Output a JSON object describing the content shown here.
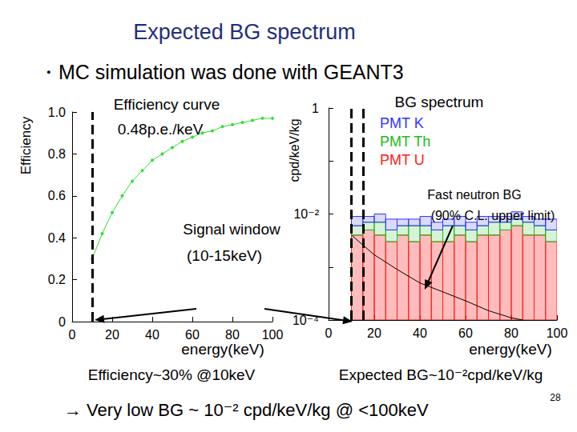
{
  "title": "Expected BG spectrum",
  "bullet": "・MC simulation was done with GEANT3",
  "signal_window_label": [
    "Signal window",
    "(10-15keV)"
  ],
  "conclusion": "→ Very low BG ~ 10⁻² cpd/keV/kg @ <100keV",
  "page_number": "28",
  "chart_data": [
    {
      "type": "line",
      "title": "Efficiency curve",
      "subtitle": "0.48p.e./keV",
      "x_label": "energy(keV)",
      "y_label": "Efficiency",
      "caption": "Efficiency~30% @10keV",
      "x": [
        10,
        15,
        20,
        25,
        30,
        35,
        40,
        45,
        50,
        55,
        60,
        65,
        70,
        75,
        80,
        85,
        90,
        95,
        100
      ],
      "values": [
        0.3,
        0.42,
        0.52,
        0.6,
        0.67,
        0.72,
        0.77,
        0.8,
        0.83,
        0.86,
        0.88,
        0.9,
        0.91,
        0.93,
        0.94,
        0.95,
        0.96,
        0.97,
        0.97
      ],
      "color": "#33dd33",
      "marker": "circle",
      "threshold": 10,
      "xlim": [
        0,
        100
      ],
      "xticks": [
        0,
        20,
        40,
        60,
        80,
        100
      ],
      "ylim": [
        0,
        1
      ],
      "yticks": [
        0,
        0.2,
        0.4,
        0.6,
        0.8,
        {
          "value": 1,
          "label": "1.0"
        }
      ],
      "grid": false
    },
    {
      "type": "histogram",
      "title": "BG spectrum",
      "x_label": "energy(keV)",
      "y_label": "cpd/keV/kg",
      "caption": "Expected BG~10⁻²cpd/keV/kg",
      "log": "y",
      "stacked": true,
      "grid": false,
      "bins": [
        10,
        15,
        20,
        25,
        30,
        35,
        40,
        45,
        50,
        55,
        60,
        65,
        70,
        75,
        80,
        85,
        90,
        95,
        100
      ],
      "series": [
        {
          "name": "PMT K",
          "color": "#3333ff",
          "values": [
            0.003,
            0.002,
            0.003,
            0.003,
            0.002,
            0.002,
            0.003,
            0.002,
            0.002,
            0.003,
            0.002,
            0.003,
            0.002,
            0.002,
            0.003,
            0.002,
            0.002,
            0.003
          ]
        },
        {
          "name": "PMT Th",
          "color": "#22bb22",
          "values": [
            0.002,
            0.002,
            0.003,
            0.002,
            0.002,
            0.003,
            0.002,
            0.002,
            0.003,
            0.002,
            0.002,
            0.002,
            0.003,
            0.002,
            0.002,
            0.003,
            0.002,
            0.002
          ]
        },
        {
          "name": "PMT U",
          "color": "#ff2020",
          "values": [
            0.004,
            0.005,
            0.004,
            0.003,
            0.004,
            0.003,
            0.004,
            0.003,
            0.003,
            0.004,
            0.003,
            0.004,
            0.004,
            0.005,
            0.006,
            0.004,
            0.004,
            0.003
          ]
        }
      ],
      "neutron": {
        "label": [
          "Fast neutron BG",
          "(90% C.L. upper limit)"
        ],
        "color": "#000000",
        "x": [
          10,
          20,
          30,
          40,
          50,
          60,
          70,
          80,
          85
        ],
        "values": [
          0.004,
          0.0017,
          0.0009,
          0.0005,
          0.00034,
          0.00023,
          0.00015,
          0.00011,
          0.0001
        ]
      },
      "signal_window": [
        10,
        15
      ],
      "xlim": [
        0,
        100
      ],
      "xticks": [
        0,
        20,
        40,
        60,
        80,
        100
      ],
      "ylim": [
        0.0001,
        1
      ],
      "yticks": [
        {
          "value": 0.0001,
          "label": "10⁻⁴"
        },
        {
          "value": 0.01,
          "label": "10⁻²"
        },
        1
      ]
    }
  ]
}
